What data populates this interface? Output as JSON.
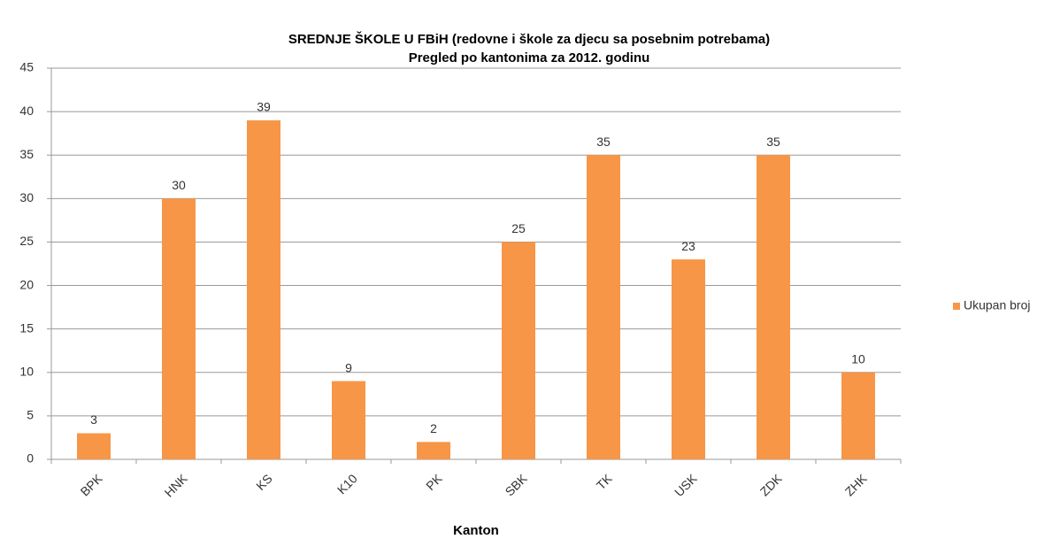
{
  "chart_data": {
    "type": "bar",
    "title": "SREDNJE ŠKOLE U FBiH (redovne i škole  za djecu sa posebnim  potrebama)",
    "subtitle": "Pregled po kantonima  za 2012. godinu",
    "x_label": "Kanton",
    "categories": [
      "BPK",
      "HNK",
      "KS",
      "K10",
      "PK",
      "SBK",
      "TK",
      "USK",
      "ZDK",
      "ZHK"
    ],
    "series": [
      {
        "name": "Ukupan broj",
        "color": "#f79646",
        "values": [
          3,
          30,
          39,
          9,
          2,
          25,
          35,
          23,
          35,
          10
        ]
      }
    ],
    "ylim": [
      0,
      45
    ],
    "yticks": [
      0,
      5,
      10,
      15,
      20,
      25,
      30,
      35,
      40,
      45
    ],
    "grid": true,
    "legend": "right"
  }
}
